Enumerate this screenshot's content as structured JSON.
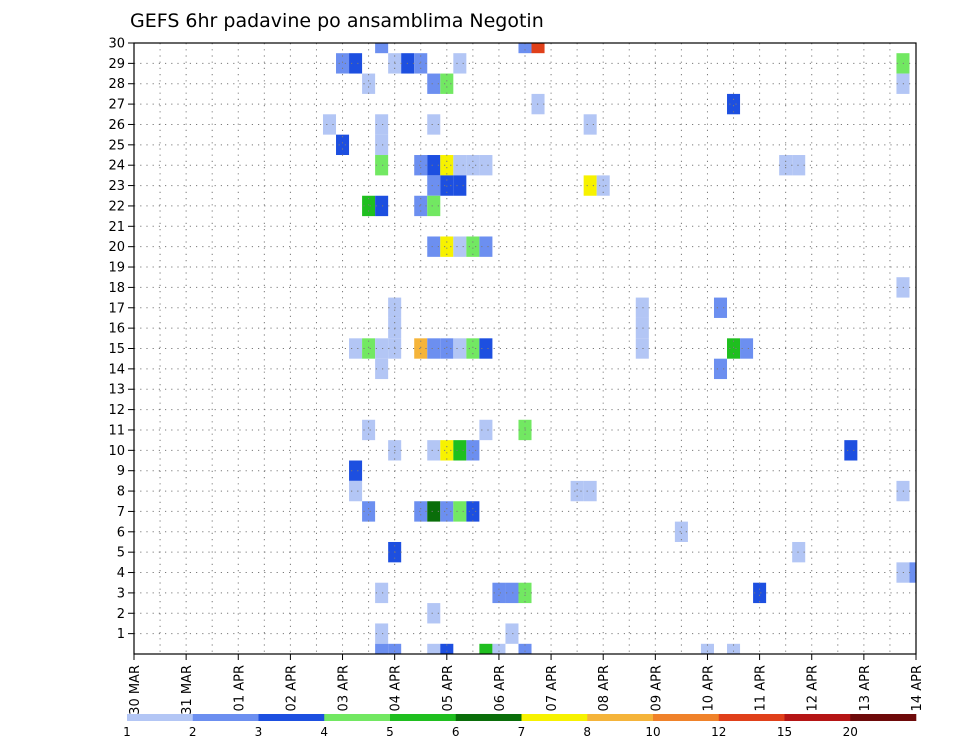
{
  "chart_data": {
    "type": "heatmap",
    "title": "GEFS 6hr padavine po ansamblima Negotin",
    "x_ticks": [
      "30 MAR",
      "31 MAR",
      "01 APR",
      "02 APR",
      "03 APR",
      "04 APR",
      "05 APR",
      "06 APR",
      "07 APR",
      "08 APR",
      "09 APR",
      "10 APR",
      "11 APR",
      "12 APR",
      "13 APR",
      "14 APR"
    ],
    "y_ticks": [
      "1",
      "2",
      "3",
      "4",
      "5",
      "6",
      "7",
      "8",
      "9",
      "10",
      "11",
      "12",
      "13",
      "14",
      "15",
      "16",
      "17",
      "18",
      "19",
      "20",
      "21",
      "22",
      "23",
      "24",
      "25",
      "26",
      "27",
      "28",
      "29",
      "30"
    ],
    "xlim": [
      0,
      60
    ],
    "ylim": [
      0,
      30
    ],
    "grid": true,
    "colorbar": {
      "labels": [
        "1",
        "2",
        "3",
        "4",
        "5",
        "6",
        "7",
        "8",
        "10",
        "12",
        "15",
        "20"
      ],
      "colors": [
        "#b3c6f5",
        "#6c8ff0",
        "#1d4fe0",
        "#72e862",
        "#1fbf1f",
        "#0a6e0a",
        "#f7f200",
        "#f5b43a",
        "#f0822a",
        "#e0401a",
        "#b51515",
        "#6e0a0a"
      ]
    },
    "cells": [
      {
        "x": 19,
        "y": 30,
        "c": 2
      },
      {
        "x": 30,
        "y": 30,
        "c": 2
      },
      {
        "x": 31,
        "y": 30,
        "c": 10
      },
      {
        "x": 16,
        "y": 29,
        "c": 2
      },
      {
        "x": 17,
        "y": 29,
        "c": 3
      },
      {
        "x": 20,
        "y": 29,
        "c": 1
      },
      {
        "x": 21,
        "y": 29,
        "c": 3
      },
      {
        "x": 22,
        "y": 29,
        "c": 2
      },
      {
        "x": 25,
        "y": 29,
        "c": 1
      },
      {
        "x": 59,
        "y": 29,
        "c": 4
      },
      {
        "x": 18,
        "y": 28,
        "c": 1
      },
      {
        "x": 23,
        "y": 28,
        "c": 2
      },
      {
        "x": 24,
        "y": 28,
        "c": 4
      },
      {
        "x": 59,
        "y": 28,
        "c": 1
      },
      {
        "x": 31,
        "y": 27,
        "c": 1
      },
      {
        "x": 46,
        "y": 27,
        "c": 3
      },
      {
        "x": 15,
        "y": 26,
        "c": 1
      },
      {
        "x": 19,
        "y": 26,
        "c": 1
      },
      {
        "x": 23,
        "y": 26,
        "c": 1
      },
      {
        "x": 35,
        "y": 26,
        "c": 1
      },
      {
        "x": 16,
        "y": 25,
        "c": 3
      },
      {
        "x": 19,
        "y": 25,
        "c": 1
      },
      {
        "x": 19,
        "y": 24,
        "c": 4
      },
      {
        "x": 22,
        "y": 24,
        "c": 2
      },
      {
        "x": 23,
        "y": 24,
        "c": 3
      },
      {
        "x": 24,
        "y": 24,
        "c": 7
      },
      {
        "x": 25,
        "y": 24,
        "c": 1
      },
      {
        "x": 26,
        "y": 24,
        "c": 1
      },
      {
        "x": 27,
        "y": 24,
        "c": 1
      },
      {
        "x": 50,
        "y": 24,
        "c": 1
      },
      {
        "x": 51,
        "y": 24,
        "c": 1
      },
      {
        "x": 23,
        "y": 23,
        "c": 2
      },
      {
        "x": 24,
        "y": 23,
        "c": 3
      },
      {
        "x": 25,
        "y": 23,
        "c": 3
      },
      {
        "x": 35,
        "y": 23,
        "c": 7
      },
      {
        "x": 36,
        "y": 23,
        "c": 1
      },
      {
        "x": 18,
        "y": 22,
        "c": 5
      },
      {
        "x": 19,
        "y": 22,
        "c": 3
      },
      {
        "x": 22,
        "y": 22,
        "c": 2
      },
      {
        "x": 23,
        "y": 22,
        "c": 4
      },
      {
        "x": 23,
        "y": 20,
        "c": 2
      },
      {
        "x": 24,
        "y": 20,
        "c": 7
      },
      {
        "x": 25,
        "y": 20,
        "c": 1
      },
      {
        "x": 26,
        "y": 20,
        "c": 4
      },
      {
        "x": 27,
        "y": 20,
        "c": 2
      },
      {
        "x": 59,
        "y": 18,
        "c": 1
      },
      {
        "x": 20,
        "y": 17,
        "c": 1
      },
      {
        "x": 39,
        "y": 17,
        "c": 1
      },
      {
        "x": 45,
        "y": 17,
        "c": 2
      },
      {
        "x": 20,
        "y": 16,
        "c": 1
      },
      {
        "x": 39,
        "y": 16,
        "c": 1
      },
      {
        "x": 17,
        "y": 15,
        "c": 1
      },
      {
        "x": 18,
        "y": 15,
        "c": 4
      },
      {
        "x": 19,
        "y": 15,
        "c": 1
      },
      {
        "x": 20,
        "y": 15,
        "c": 1
      },
      {
        "x": 22,
        "y": 15,
        "c": 8
      },
      {
        "x": 23,
        "y": 15,
        "c": 2
      },
      {
        "x": 24,
        "y": 15,
        "c": 2
      },
      {
        "x": 25,
        "y": 15,
        "c": 1
      },
      {
        "x": 26,
        "y": 15,
        "c": 4
      },
      {
        "x": 27,
        "y": 15,
        "c": 3
      },
      {
        "x": 39,
        "y": 15,
        "c": 1
      },
      {
        "x": 46,
        "y": 15,
        "c": 5
      },
      {
        "x": 47,
        "y": 15,
        "c": 2
      },
      {
        "x": 19,
        "y": 14,
        "c": 1
      },
      {
        "x": 45,
        "y": 14,
        "c": 2
      },
      {
        "x": 18,
        "y": 11,
        "c": 1
      },
      {
        "x": 27,
        "y": 11,
        "c": 1
      },
      {
        "x": 30,
        "y": 11,
        "c": 4
      },
      {
        "x": 20,
        "y": 10,
        "c": 1
      },
      {
        "x": 23,
        "y": 10,
        "c": 1
      },
      {
        "x": 24,
        "y": 10,
        "c": 7
      },
      {
        "x": 25,
        "y": 10,
        "c": 5
      },
      {
        "x": 26,
        "y": 10,
        "c": 2
      },
      {
        "x": 55,
        "y": 10,
        "c": 3
      },
      {
        "x": 17,
        "y": 9,
        "c": 3
      },
      {
        "x": 17,
        "y": 8,
        "c": 1
      },
      {
        "x": 34,
        "y": 8,
        "c": 1
      },
      {
        "x": 35,
        "y": 8,
        "c": 1
      },
      {
        "x": 59,
        "y": 8,
        "c": 1
      },
      {
        "x": 18,
        "y": 7,
        "c": 2
      },
      {
        "x": 22,
        "y": 7,
        "c": 2
      },
      {
        "x": 23,
        "y": 7,
        "c": 6
      },
      {
        "x": 24,
        "y": 7,
        "c": 2
      },
      {
        "x": 25,
        "y": 7,
        "c": 4
      },
      {
        "x": 26,
        "y": 7,
        "c": 3
      },
      {
        "x": 42,
        "y": 6,
        "c": 1
      },
      {
        "x": 20,
        "y": 5,
        "c": 3
      },
      {
        "x": 51,
        "y": 5,
        "c": 1
      },
      {
        "x": 59,
        "y": 4,
        "c": 1
      },
      {
        "x": 60,
        "y": 4,
        "c": 2
      },
      {
        "x": 19,
        "y": 3,
        "c": 1
      },
      {
        "x": 28,
        "y": 3,
        "c": 2
      },
      {
        "x": 29,
        "y": 3,
        "c": 2
      },
      {
        "x": 30,
        "y": 3,
        "c": 4
      },
      {
        "x": 48,
        "y": 3,
        "c": 3
      },
      {
        "x": 23,
        "y": 2,
        "c": 1
      },
      {
        "x": 19,
        "y": 1,
        "c": 1
      },
      {
        "x": 29,
        "y": 1,
        "c": 1
      },
      {
        "x": 19,
        "y": 0,
        "c": 2
      },
      {
        "x": 20,
        "y": 0,
        "c": 2
      },
      {
        "x": 23,
        "y": 0,
        "c": 1
      },
      {
        "x": 24,
        "y": 0,
        "c": 3
      },
      {
        "x": 27,
        "y": 0,
        "c": 5
      },
      {
        "x": 28,
        "y": 0,
        "c": 1
      },
      {
        "x": 30,
        "y": 0,
        "c": 2
      },
      {
        "x": 44,
        "y": 0,
        "c": 1
      },
      {
        "x": 46,
        "y": 0,
        "c": 1
      }
    ]
  }
}
